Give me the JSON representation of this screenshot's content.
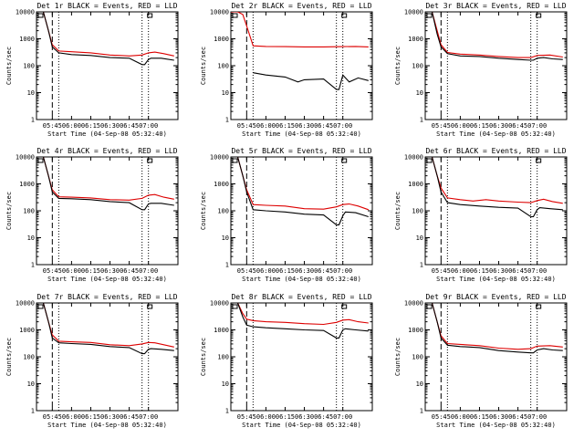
{
  "figure": {
    "black_color": "#000000",
    "red_color": "#dd0000",
    "shared_axes": {
      "xlabel": "Start Time (04-Sep-08 05:32:40)",
      "ylabel": "Counts/sec",
      "x_tick_labels": [
        "05:45",
        "06:00",
        "06:15",
        "06:30",
        "06:45",
        "07:00"
      ],
      "y_tick_labels": [
        "1",
        "10",
        "100",
        "1000",
        "10000"
      ]
    }
  },
  "chart_data": [
    {
      "type": "line",
      "title": "Det 1r BLACK = Events, RED = LLD",
      "xlabel": "Start Time (04-Sep-08 05:32:40)",
      "ylabel": "Counts/sec",
      "y_scale": "log",
      "ylim": [
        1,
        10000
      ],
      "x_ticks": [
        "05:45",
        "06:00",
        "06:15",
        "06:30",
        "06:45",
        "07:00"
      ],
      "annotations": {
        "dashed_line_x": "05:45",
        "dotted_lines_x": [
          "05:50",
          "06:55",
          "07:00"
        ]
      },
      "series": [
        {
          "color": "black",
          "x": [
            "05:32",
            "05:38",
            "05:42",
            "05:45",
            "05:50",
            "06:00",
            "06:15",
            "06:30",
            "06:45",
            "06:55",
            "06:57",
            "07:00",
            "07:02",
            "07:10",
            "07:20"
          ],
          "values": [
            10000,
            10000,
            2000,
            500,
            300,
            260,
            240,
            200,
            190,
            110,
            110,
            170,
            190,
            190,
            160
          ]
        },
        {
          "color": "red",
          "x": [
            "05:32",
            "05:38",
            "05:42",
            "05:45",
            "05:50",
            "06:00",
            "06:15",
            "06:30",
            "06:45",
            "06:55",
            "07:00",
            "07:05",
            "07:12",
            "07:20"
          ],
          "values": [
            10000,
            10000,
            2000,
            600,
            350,
            330,
            300,
            250,
            230,
            250,
            300,
            320,
            280,
            230
          ]
        }
      ]
    },
    {
      "type": "line",
      "title": "Det 2r BLACK = Events, RED = LLD",
      "xlabel": "Start Time (04-Sep-08 05:32:40)",
      "ylabel": "Counts/sec",
      "y_scale": "log",
      "ylim": [
        1,
        10000
      ],
      "x_ticks": [
        "05:45",
        "06:00",
        "06:15",
        "06:30",
        "06:45",
        "07:00"
      ],
      "annotations": {
        "dashed_line_x": "05:45",
        "dotted_lines_x": [
          "05:50",
          "06:55",
          "07:00"
        ]
      },
      "series": [
        {
          "color": "black",
          "x": [
            "05:50",
            "06:00",
            "06:15",
            "06:25",
            "06:30",
            "06:45",
            "06:55",
            "06:57",
            "07:00",
            "07:05",
            "07:12",
            "07:20"
          ],
          "values": [
            55,
            45,
            38,
            25,
            30,
            32,
            13,
            13,
            45,
            25,
            35,
            28
          ]
        },
        {
          "color": "red",
          "x": [
            "05:32",
            "05:38",
            "05:42",
            "05:45",
            "05:50",
            "06:00",
            "06:15",
            "06:30",
            "06:45",
            "07:00",
            "07:10",
            "07:20"
          ],
          "values": [
            10000,
            10000,
            8000,
            3000,
            550,
            520,
            510,
            500,
            500,
            510,
            520,
            500
          ]
        }
      ]
    },
    {
      "type": "line",
      "title": "Det 3r BLACK = Events, RED = LLD",
      "xlabel": "Start Time (04-Sep-08 05:32:40)",
      "ylabel": "Counts/sec",
      "y_scale": "log",
      "ylim": [
        1,
        10000
      ],
      "x_ticks": [
        "05:45",
        "06:00",
        "06:15",
        "06:30",
        "06:45",
        "07:00"
      ],
      "annotations": {
        "dashed_line_x": "05:45",
        "dotted_lines_x": [
          "05:50",
          "06:55",
          "07:00"
        ]
      },
      "series": [
        {
          "color": "black",
          "x": [
            "05:32",
            "05:38",
            "05:42",
            "05:45",
            "05:50",
            "06:00",
            "06:15",
            "06:30",
            "06:45",
            "06:55",
            "06:57",
            "07:00",
            "07:05",
            "07:12",
            "07:20"
          ],
          "values": [
            10000,
            10000,
            1500,
            500,
            280,
            230,
            220,
            190,
            170,
            160,
            160,
            190,
            200,
            180,
            170
          ]
        },
        {
          "color": "red",
          "x": [
            "05:32",
            "05:38",
            "05:42",
            "05:45",
            "05:50",
            "06:00",
            "06:15",
            "06:30",
            "06:45",
            "06:55",
            "07:00",
            "07:10",
            "07:20"
          ],
          "values": [
            10000,
            10000,
            2000,
            600,
            310,
            270,
            250,
            220,
            200,
            200,
            240,
            250,
            210
          ]
        }
      ]
    },
    {
      "type": "line",
      "title": "Det 4r BLACK = Events, RED = LLD",
      "xlabel": "Start Time (04-Sep-08 05:32:40)",
      "ylabel": "Counts/sec",
      "y_scale": "log",
      "ylim": [
        1,
        10000
      ],
      "x_ticks": [
        "05:45",
        "06:00",
        "06:15",
        "06:30",
        "06:45",
        "07:00"
      ],
      "annotations": {
        "dashed_line_x": "05:45",
        "dotted_lines_x": [
          "05:50",
          "06:55",
          "07:00"
        ]
      },
      "series": [
        {
          "color": "black",
          "x": [
            "05:32",
            "05:38",
            "05:42",
            "05:45",
            "05:50",
            "06:00",
            "06:15",
            "06:30",
            "06:45",
            "06:55",
            "06:57",
            "07:00",
            "07:02",
            "07:10",
            "07:20"
          ],
          "values": [
            10000,
            10000,
            2000,
            500,
            290,
            280,
            260,
            220,
            200,
            110,
            110,
            180,
            190,
            190,
            160
          ]
        },
        {
          "color": "red",
          "x": [
            "05:32",
            "05:38",
            "05:42",
            "05:45",
            "05:50",
            "06:00",
            "06:15",
            "06:30",
            "06:45",
            "06:55",
            "07:00",
            "07:05",
            "07:12",
            "07:20"
          ],
          "values": [
            10000,
            10000,
            2000,
            600,
            330,
            320,
            300,
            260,
            250,
            290,
            380,
            400,
            320,
            270
          ]
        }
      ]
    },
    {
      "type": "line",
      "title": "Det 5r BLACK = Events, RED = LLD",
      "xlabel": "Start Time (04-Sep-08 05:32:40)",
      "ylabel": "Counts/sec",
      "y_scale": "log",
      "ylim": [
        1,
        10000
      ],
      "x_ticks": [
        "05:45",
        "06:00",
        "06:15",
        "06:30",
        "06:45",
        "07:00"
      ],
      "annotations": {
        "dashed_line_x": "05:45",
        "dotted_lines_x": [
          "05:50",
          "06:55",
          "07:00"
        ]
      },
      "series": [
        {
          "color": "black",
          "x": [
            "05:32",
            "05:38",
            "05:42",
            "05:45",
            "05:50",
            "06:00",
            "06:15",
            "06:30",
            "06:45",
            "06:55",
            "06:57",
            "07:00",
            "07:02",
            "07:10",
            "07:20"
          ],
          "values": [
            10000,
            10000,
            2000,
            500,
            110,
            100,
            90,
            75,
            70,
            30,
            30,
            65,
            90,
            85,
            60
          ]
        },
        {
          "color": "red",
          "x": [
            "05:32",
            "05:38",
            "05:42",
            "05:45",
            "05:50",
            "06:00",
            "06:15",
            "06:30",
            "06:45",
            "06:55",
            "07:00",
            "07:05",
            "07:12",
            "07:20"
          ],
          "values": [
            10000,
            10000,
            2000,
            600,
            170,
            160,
            150,
            120,
            115,
            140,
            170,
            180,
            150,
            110
          ]
        }
      ]
    },
    {
      "type": "line",
      "title": "Det 6r BLACK = Events, RED = LLD",
      "xlabel": "Start Time (04-Sep-08 05:32:40)",
      "ylabel": "Counts/sec",
      "y_scale": "log",
      "ylim": [
        1,
        10000
      ],
      "x_ticks": [
        "05:45",
        "06:00",
        "06:15",
        "06:30",
        "06:45",
        "07:00"
      ],
      "annotations": {
        "dashed_line_x": "05:45",
        "dotted_lines_x": [
          "05:50",
          "06:55",
          "07:00"
        ]
      },
      "series": [
        {
          "color": "black",
          "x": [
            "05:32",
            "05:38",
            "05:42",
            "05:45",
            "05:50",
            "06:00",
            "06:15",
            "06:30",
            "06:45",
            "06:55",
            "06:57",
            "07:00",
            "07:02",
            "07:10",
            "07:20"
          ],
          "values": [
            10000,
            10000,
            2000,
            500,
            200,
            170,
            150,
            135,
            125,
            60,
            60,
            110,
            130,
            120,
            110
          ]
        },
        {
          "color": "red",
          "x": [
            "05:32",
            "05:38",
            "05:42",
            "05:45",
            "05:50",
            "06:00",
            "06:10",
            "06:20",
            "06:30",
            "06:45",
            "06:55",
            "07:00",
            "07:05",
            "07:12",
            "07:20"
          ],
          "values": [
            10000,
            10000,
            2000,
            700,
            300,
            260,
            230,
            260,
            230,
            210,
            200,
            240,
            270,
            220,
            190
          ]
        }
      ]
    },
    {
      "type": "line",
      "title": "Det 7r BLACK = Events, RED = LLD",
      "xlabel": "Start Time (04-Sep-08 05:32:40)",
      "ylabel": "Counts/sec",
      "y_scale": "log",
      "ylim": [
        1,
        10000
      ],
      "x_ticks": [
        "05:45",
        "06:00",
        "06:15",
        "06:30",
        "06:45",
        "07:00"
      ],
      "annotations": {
        "dashed_line_x": "05:45",
        "dotted_lines_x": [
          "05:50",
          "06:55",
          "07:00"
        ]
      },
      "series": [
        {
          "color": "black",
          "x": [
            "05:32",
            "05:38",
            "05:42",
            "05:45",
            "05:50",
            "06:00",
            "06:15",
            "06:30",
            "06:45",
            "06:55",
            "06:57",
            "07:00",
            "07:02",
            "07:10",
            "07:20"
          ],
          "values": [
            10000,
            10000,
            2000,
            500,
            330,
            310,
            290,
            240,
            220,
            130,
            130,
            190,
            200,
            190,
            170
          ]
        },
        {
          "color": "red",
          "x": [
            "05:32",
            "05:38",
            "05:42",
            "05:45",
            "05:50",
            "06:00",
            "06:15",
            "06:30",
            "06:45",
            "06:55",
            "07:00",
            "07:05",
            "07:12",
            "07:20"
          ],
          "values": [
            10000,
            10000,
            2000,
            650,
            380,
            360,
            340,
            280,
            260,
            300,
            340,
            330,
            280,
            230
          ]
        }
      ]
    },
    {
      "type": "line",
      "title": "Det 8r BLACK = Events, RED = LLD",
      "xlabel": "Start Time (04-Sep-08 05:32:40)",
      "ylabel": "Counts/sec",
      "y_scale": "log",
      "ylim": [
        1,
        10000
      ],
      "x_ticks": [
        "05:45",
        "06:00",
        "06:15",
        "06:30",
        "06:45",
        "07:00"
      ],
      "annotations": {
        "dashed_line_x": "05:45",
        "dotted_lines_x": [
          "05:50",
          "06:55",
          "07:00"
        ]
      },
      "series": [
        {
          "color": "black",
          "x": [
            "05:32",
            "05:38",
            "05:42",
            "05:45",
            "05:50",
            "06:00",
            "06:15",
            "06:30",
            "06:45",
            "06:55",
            "06:57",
            "07:00",
            "07:02",
            "07:10",
            "07:20"
          ],
          "values": [
            10000,
            10000,
            3000,
            1500,
            1300,
            1200,
            1100,
            1000,
            950,
            500,
            500,
            1000,
            1100,
            1000,
            900
          ]
        },
        {
          "color": "red",
          "x": [
            "05:32",
            "05:38",
            "05:42",
            "05:45",
            "05:50",
            "06:00",
            "06:15",
            "06:30",
            "06:45",
            "06:55",
            "07:00",
            "07:05",
            "07:12",
            "07:20"
          ],
          "values": [
            10000,
            10000,
            4000,
            2500,
            2200,
            2000,
            1900,
            1700,
            1600,
            1900,
            2300,
            2400,
            2000,
            1800
          ]
        }
      ]
    },
    {
      "type": "line",
      "title": "Det 9r BLACK = Events, RED = LLD",
      "xlabel": "Start Time (04-Sep-08 05:32:40)",
      "ylabel": "Counts/sec",
      "y_scale": "log",
      "ylim": [
        1,
        10000
      ],
      "x_ticks": [
        "05:45",
        "06:00",
        "06:15",
        "06:30",
        "06:45",
        "07:00"
      ],
      "annotations": {
        "dashed_line_x": "05:45",
        "dotted_lines_x": [
          "05:50",
          "06:55",
          "07:00"
        ]
      },
      "series": [
        {
          "color": "black",
          "x": [
            "05:32",
            "05:38",
            "05:42",
            "05:45",
            "05:50",
            "06:00",
            "06:15",
            "06:30",
            "06:45",
            "06:55",
            "06:57",
            "07:00",
            "07:05",
            "07:12",
            "07:20"
          ],
          "values": [
            10000,
            10000,
            2000,
            500,
            270,
            240,
            220,
            170,
            150,
            140,
            140,
            180,
            200,
            180,
            170
          ]
        },
        {
          "color": "red",
          "x": [
            "05:32",
            "05:38",
            "05:42",
            "05:45",
            "05:50",
            "06:00",
            "06:15",
            "06:30",
            "06:45",
            "06:55",
            "07:00",
            "07:10",
            "07:20"
          ],
          "values": [
            10000,
            10000,
            2000,
            600,
            310,
            290,
            260,
            210,
            190,
            200,
            250,
            260,
            230
          ]
        }
      ]
    }
  ]
}
